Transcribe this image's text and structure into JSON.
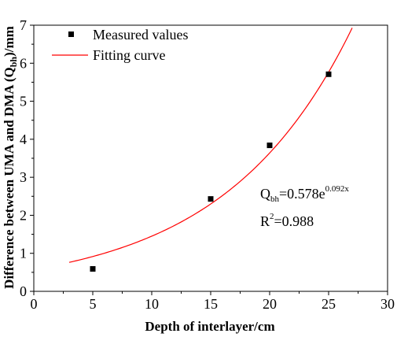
{
  "chart_data": {
    "type": "scatter",
    "xlabel": "Depth of interlayer/cm",
    "ylabel_parts": {
      "prefix": "Difference between UMA and DMA (Q",
      "sub": "bh",
      "suffix": ")/mm"
    },
    "xlim": [
      0,
      30
    ],
    "ylim": [
      0,
      7
    ],
    "xticks": [
      0,
      5,
      10,
      15,
      20,
      25,
      30
    ],
    "yticks": [
      0,
      1,
      2,
      3,
      4,
      5,
      6,
      7
    ],
    "grid": false,
    "legend_position": "top-left",
    "series": [
      {
        "name": "Measured values",
        "kind": "points",
        "color": "#000000",
        "x": [
          5,
          15,
          20,
          25
        ],
        "y": [
          0.59,
          2.43,
          3.84,
          5.71
        ]
      },
      {
        "name": "Fitting curve",
        "kind": "curve",
        "color": "#ff0000",
        "equation": {
          "a": 0.578,
          "b": 0.092
        },
        "x_range": [
          3,
          27
        ]
      }
    ],
    "annotations": {
      "eq_q": "Q",
      "eq_sub": "bh",
      "eq_mid": "=0.578e",
      "eq_sup": "0.092x",
      "r2_r": "R",
      "r2_sup": "2",
      "r2_val": "=0.988"
    }
  }
}
